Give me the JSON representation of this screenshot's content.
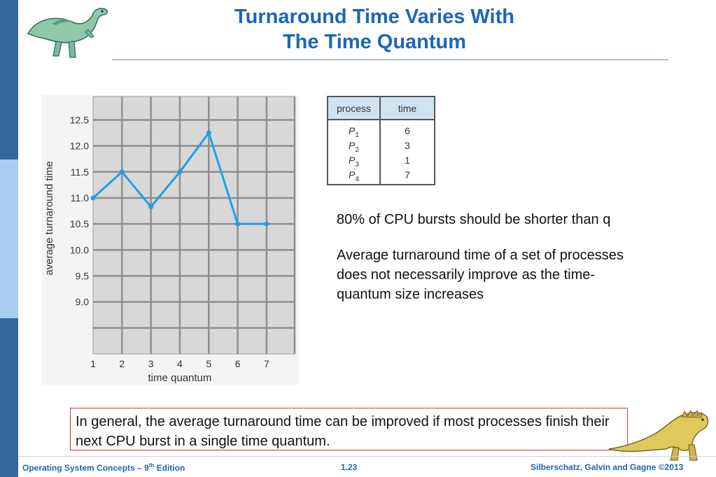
{
  "slide": {
    "title_line1": "Turnaround Time Varies With",
    "title_line2": "The Time Quantum",
    "bullets": [
      "80% of CPU bursts should be shorter than q",
      "Average turnaround time of a set of processes  does not necessarily improve as the time-quantum size increases"
    ],
    "callout": "In general, the average turnaround time can be improved if most processes finish their next CPU burst in a single time quantum."
  },
  "process_table": {
    "headers": [
      "process",
      "time"
    ],
    "rows": [
      {
        "name": "P",
        "sub": "1",
        "time": "6"
      },
      {
        "name": "P",
        "sub": "2",
        "time": "3"
      },
      {
        "name": "P",
        "sub": "3",
        "time": "1"
      },
      {
        "name": "P",
        "sub": "4",
        "time": "7"
      }
    ]
  },
  "chart_data": {
    "type": "line",
    "x": [
      1,
      2,
      3,
      4,
      5,
      6,
      7
    ],
    "series": [
      {
        "values": [
          11.0,
          11.5,
          10.83,
          11.5,
          12.25,
          10.5,
          10.5
        ]
      }
    ],
    "xlabel": "time quantum",
    "ylabel": "average turnaround time",
    "xlim": [
      1,
      7.97
    ],
    "ylim": [
      8.0,
      12.95
    ],
    "xticks": [
      "1",
      "2",
      "3",
      "4",
      "5",
      "6",
      "7"
    ],
    "yticks": [
      "12.5",
      "12.0",
      "11.5",
      "11.0",
      "10.5",
      "10.0",
      "9.5",
      "9.0"
    ],
    "ytick_values": [
      12.5,
      12.0,
      11.5,
      11.0,
      10.5,
      10.0,
      9.5,
      9.0
    ],
    "extra_gridline_values": [
      8.5
    ],
    "grid": true,
    "line_color": "#1ea0e6",
    "plot_background": "#d8d8d8"
  },
  "footer": {
    "left_main": "Operating System Concepts – 9",
    "left_sup": "th",
    "left_tail": " Edition",
    "center": "1.23",
    "right": "Silberschatz, Galvin and Gagne ©2013"
  },
  "colors": {
    "accent": "#1c66b5",
    "side_dark": "#3566a0",
    "side_light": "#a9cdf0",
    "callout_border": "#dd3333"
  }
}
